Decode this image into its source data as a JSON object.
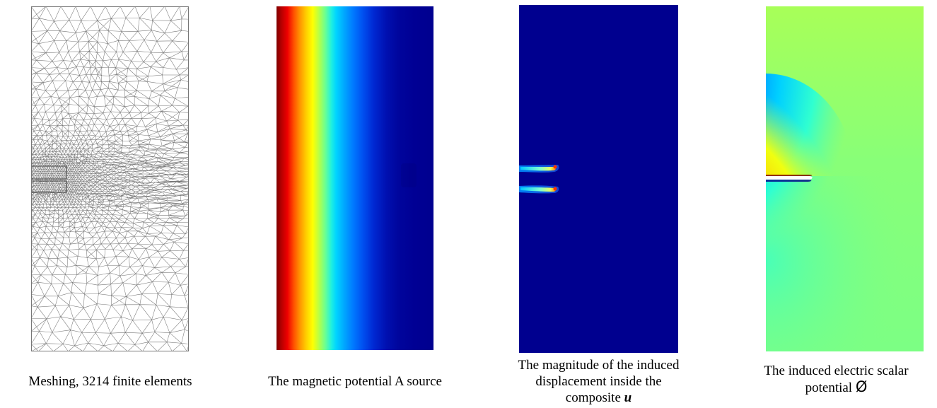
{
  "figure": {
    "panels": [
      {
        "id": "mesh",
        "caption": "Meshing, 3214 finite elements",
        "colors": {
          "line": "#777777",
          "background": "#ffffff"
        }
      },
      {
        "id": "magnetic-potential",
        "caption": "The magnetic potential A source",
        "colormap": "jet",
        "gradient_direction": "left-to-right, high to low"
      },
      {
        "id": "displacement",
        "caption_lines": [
          "The magnitude of the induced",
          "displacement inside the",
          "composite"
        ],
        "caption_symbol": "u",
        "colors": {
          "background": "#00008f"
        }
      },
      {
        "id": "electric-potential",
        "caption_lines": [
          "The induced electric scalar",
          "potential"
        ],
        "caption_symbol": "Ø",
        "colors": {
          "background": "#80ff80"
        }
      }
    ]
  }
}
